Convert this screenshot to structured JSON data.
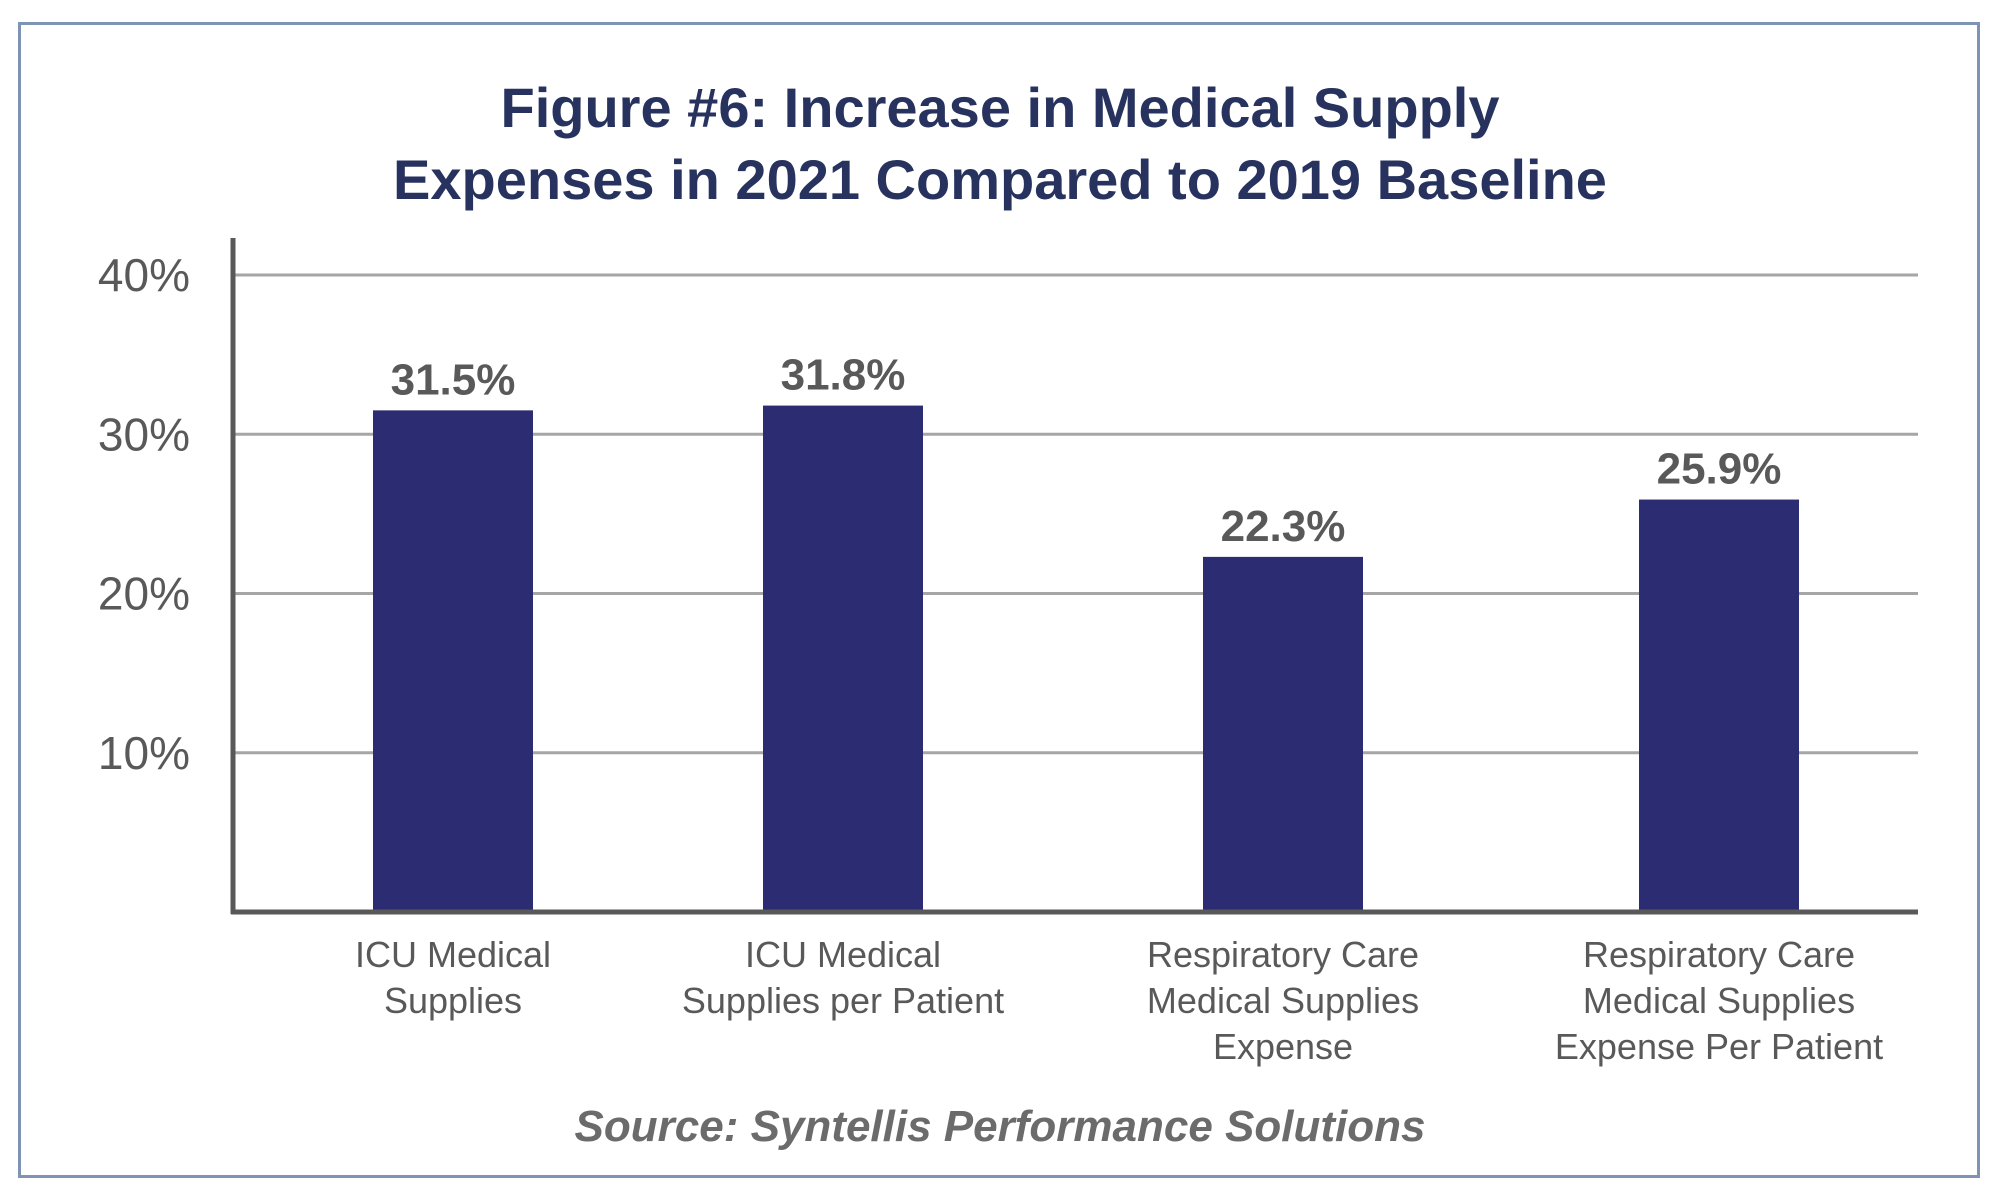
{
  "title": {
    "lead": "Figure #6",
    "rest": ": Increase in Medical Supply",
    "line2": "Expenses in 2021 Compared to 2019 Baseline"
  },
  "source": "Source: Syntellis Performance Solutions",
  "colors": {
    "bar": "#2b2c72",
    "title": "#27335e",
    "grid": "#a6a6a6",
    "axis": "#595959",
    "frame": "#7f93b4",
    "label": "#595959"
  },
  "chart_data": {
    "type": "bar",
    "categories": [
      [
        "ICU Medical",
        "Supplies"
      ],
      [
        "ICU Medical",
        "Supplies per Patient"
      ],
      [
        "Respiratory Care",
        "Medical Supplies",
        "Expense"
      ],
      [
        "Respiratory Care",
        "Medical Supplies",
        "Expense Per Patient"
      ]
    ],
    "values": [
      31.5,
      31.8,
      22.3,
      25.9
    ],
    "data_labels": [
      "31.5%",
      "31.8%",
      "22.3%",
      "25.9%"
    ],
    "yticks": [
      {
        "value": 10,
        "label": "10%"
      },
      {
        "value": 20,
        "label": "20%"
      },
      {
        "value": 30,
        "label": "30%"
      },
      {
        "value": 40,
        "label": "40%"
      }
    ],
    "ylim": [
      0,
      40
    ],
    "grid": true,
    "legend": "none"
  }
}
